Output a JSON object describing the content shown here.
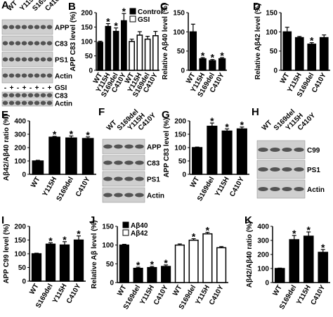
{
  "chart_data": [
    {
      "type": "bar",
      "panel": "B",
      "ylabel": "APP C83 level (%)",
      "categories": [
        "WT",
        "Y115H",
        "S169del",
        "C410Y",
        "WT",
        "Y115H",
        "S169del",
        "C410Y"
      ],
      "legend": "upper-right",
      "series": [
        {
          "name": "Control",
          "color": "#000000",
          "values": [
            97,
            152,
            135,
            172,
            null,
            null,
            null,
            null
          ],
          "errors": [
            4,
            10,
            12,
            25,
            null,
            null,
            null,
            null
          ],
          "annotations": [
            null,
            "*",
            "*",
            "*",
            null,
            null,
            null,
            null
          ]
        },
        {
          "name": "GSI",
          "color": "#ffffff",
          "values": [
            null,
            null,
            null,
            null,
            100,
            122,
            108,
            120
          ],
          "errors": [
            null,
            null,
            null,
            null,
            8,
            12,
            10,
            15
          ],
          "annotations": [
            null,
            null,
            null,
            null,
            null,
            null,
            null,
            null
          ]
        }
      ],
      "ylim": [
        0,
        200
      ],
      "yticks": [
        0,
        50,
        100,
        150,
        200
      ]
    },
    {
      "type": "bar",
      "panel": "C",
      "ylabel": "Relative Aβ40 level (%)",
      "categories": [
        "WT",
        "Y115H",
        "S169del",
        "C410Y"
      ],
      "color": "#000000",
      "values": [
        100,
        30,
        25,
        30
      ],
      "errors": [
        20,
        3,
        3,
        3
      ],
      "annotations": [
        null,
        "*",
        "*",
        "*"
      ],
      "ylim": [
        0,
        150
      ],
      "yticks": [
        0,
        50,
        100,
        150
      ]
    },
    {
      "type": "bar",
      "panel": "D",
      "ylabel": "Relative Aβ42 level (%)",
      "categories": [
        "WT",
        "Y115H",
        "S169del",
        "C410Y"
      ],
      "color": "#000000",
      "values": [
        100,
        85,
        68,
        85
      ],
      "errors": [
        12,
        3,
        4,
        7
      ],
      "annotations": [
        null,
        null,
        "*",
        null
      ],
      "ylim": [
        0,
        150
      ],
      "yticks": [
        0,
        50,
        100,
        150
      ]
    },
    {
      "type": "bar",
      "panel": "E",
      "ylabel": "Aβ42/Aβ40 ratio (%)",
      "categories": [
        "WT",
        "Y115H",
        "S169del",
        "C410Y"
      ],
      "color": "#000000",
      "values": [
        100,
        278,
        272,
        268
      ],
      "errors": [
        5,
        6,
        15,
        12
      ],
      "annotations": [
        null,
        "*",
        "*",
        "*"
      ],
      "ylim": [
        0,
        400
      ],
      "yticks": [
        0,
        100,
        200,
        300,
        400
      ]
    },
    {
      "type": "bar",
      "panel": "G",
      "ylabel": "APP C83 level (%)",
      "categories": [
        "WT",
        "S169del",
        "Y115H",
        "C410Y"
      ],
      "color": "#000000",
      "values": [
        100,
        180,
        162,
        170
      ],
      "errors": [
        2,
        12,
        8,
        7
      ],
      "annotations": [
        null,
        "*",
        "*",
        "*"
      ],
      "ylim": [
        0,
        200
      ],
      "yticks": [
        0,
        50,
        100,
        150,
        200
      ]
    },
    {
      "type": "bar",
      "panel": "I",
      "ylabel": "APP C99 level (%)",
      "categories": [
        "WT",
        "S169del",
        "Y115H",
        "C410Y"
      ],
      "color": "#000000",
      "values": [
        100,
        135,
        132,
        150
      ],
      "errors": [
        2,
        5,
        12,
        15
      ],
      "annotations": [
        null,
        "*",
        "*",
        "*"
      ],
      "ylim": [
        0,
        200
      ],
      "yticks": [
        0,
        50,
        100,
        150,
        200
      ]
    },
    {
      "type": "bar",
      "panel": "J",
      "ylabel": "Relative Aβ level (%)",
      "categories": [
        "WT",
        "S169del",
        "Y115H",
        "C410Y",
        "WT",
        "S169del",
        "Y115H",
        "C410Y"
      ],
      "legend": "upper-left",
      "series": [
        {
          "name": "Aβ40",
          "color": "#000000",
          "values": [
            100,
            38,
            40,
            43,
            null,
            null,
            null,
            null
          ],
          "errors": [
            2,
            3,
            3,
            4,
            null,
            null,
            null,
            null
          ],
          "annotations": [
            null,
            "*",
            "*",
            "*",
            null,
            null,
            null,
            null
          ]
        },
        {
          "name": "Aβ42",
          "color": "#ffffff",
          "values": [
            null,
            null,
            null,
            null,
            100,
            113,
            130,
            93
          ],
          "errors": [
            null,
            null,
            null,
            null,
            3,
            4,
            4,
            3
          ],
          "annotations": [
            null,
            null,
            null,
            null,
            null,
            "*",
            "*",
            null
          ]
        }
      ],
      "ylim": [
        0,
        150
      ],
      "yticks": [
        0,
        50,
        100,
        150
      ]
    },
    {
      "type": "bar",
      "panel": "K",
      "ylabel": "Aβ42/Aβ40 ratio (%)",
      "categories": [
        "WT",
        "S169del",
        "Y115H",
        "C410Y"
      ],
      "color": "#000000",
      "values": [
        100,
        305,
        330,
        215
      ],
      "errors": [
        3,
        30,
        30,
        20
      ],
      "annotations": [
        null,
        "*",
        "*",
        "*"
      ],
      "ylim": [
        0,
        400
      ],
      "yticks": [
        0,
        100,
        200,
        300,
        400
      ]
    }
  ],
  "blots": [
    {
      "panel": "A",
      "lanes": [
        "WT",
        "Y115H",
        "S169del",
        "C410Y"
      ],
      "rows": [
        "APP",
        "C83",
        "PS1",
        "Actin"
      ],
      "treatment": "GSI",
      "marks": [
        "-",
        "+",
        "-",
        "+",
        "-",
        "+",
        "-",
        "+"
      ],
      "rows2": [
        "C83",
        "Actin"
      ]
    },
    {
      "panel": "F",
      "lanes": [
        "WT",
        "S169del",
        "Y115H",
        "C410Y"
      ],
      "rows": [
        "APP",
        "C83",
        "PS1",
        "Actin"
      ]
    },
    {
      "panel": "H",
      "lanes": [
        "WT",
        "S169del",
        "Y115H",
        "C410Y"
      ],
      "rows": [
        "C99",
        "PS1",
        "Actin"
      ]
    }
  ]
}
